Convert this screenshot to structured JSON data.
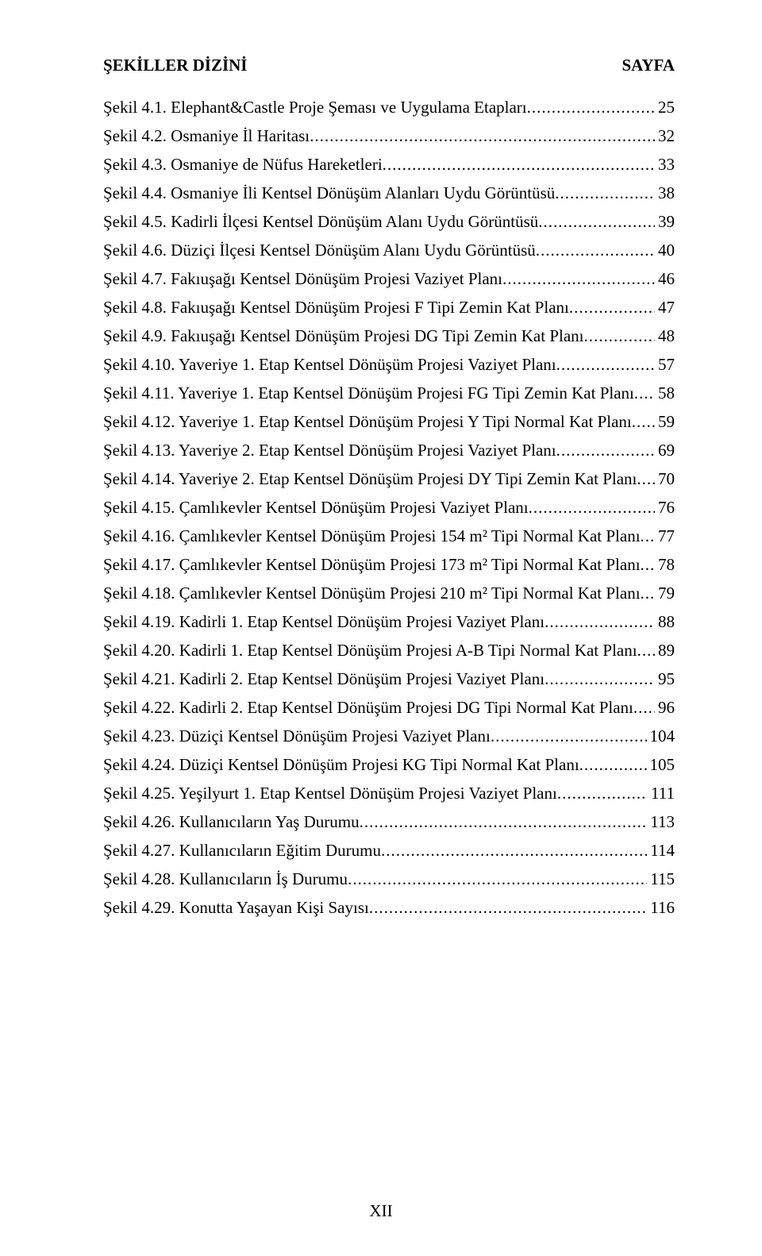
{
  "header": {
    "left": "ŞEKİLLER DİZİNİ",
    "right": "SAYFA"
  },
  "entries": [
    {
      "label": "Şekil 4.1. Elephant&Castle Proje Şeması ve Uygulama Etapları",
      "page": "25"
    },
    {
      "label": "Şekil 4.2. Osmaniye İl Haritası",
      "page": "32"
    },
    {
      "label": "Şekil 4.3. Osmaniye de Nüfus Hareketleri",
      "page": "33"
    },
    {
      "label": "Şekil 4.4. Osmaniye İli Kentsel Dönüşüm Alanları Uydu Görüntüsü",
      "page": "38"
    },
    {
      "label": "Şekil 4.5. Kadirli İlçesi Kentsel Dönüşüm Alanı Uydu Görüntüsü",
      "page": "39"
    },
    {
      "label": "Şekil 4.6. Düziçi İlçesi Kentsel Dönüşüm Alanı Uydu Görüntüsü",
      "page": "40"
    },
    {
      "label": "Şekil 4.7. Fakıuşağı Kentsel Dönüşüm Projesi Vaziyet Planı",
      "page": "46"
    },
    {
      "label": "Şekil 4.8. Fakıuşağı Kentsel Dönüşüm Projesi F Tipi Zemin Kat Planı",
      "page": "47"
    },
    {
      "label": "Şekil 4.9. Fakıuşağı Kentsel Dönüşüm Projesi DG Tipi Zemin Kat Planı",
      "page": "48"
    },
    {
      "label": "Şekil 4.10. Yaveriye 1. Etap Kentsel Dönüşüm Projesi Vaziyet Planı",
      "page": "57"
    },
    {
      "label": "Şekil 4.11. Yaveriye 1. Etap Kentsel Dönüşüm Projesi FG Tipi Zemin Kat Planı",
      "page": "58"
    },
    {
      "label": "Şekil 4.12. Yaveriye 1. Etap Kentsel Dönüşüm Projesi Y Tipi Normal Kat Planı",
      "page": "59"
    },
    {
      "label": "Şekil 4.13. Yaveriye 2. Etap Kentsel Dönüşüm Projesi Vaziyet Planı",
      "page": "69"
    },
    {
      "label": "Şekil 4.14. Yaveriye 2. Etap Kentsel Dönüşüm Projesi DY Tipi Zemin Kat Planı",
      "page": "70"
    },
    {
      "label": "Şekil 4.15. Çamlıkevler Kentsel Dönüşüm Projesi Vaziyet Planı",
      "page": "76"
    },
    {
      "label": "Şekil 4.16. Çamlıkevler Kentsel Dönüşüm Projesi 154 m² Tipi Normal Kat Planı",
      "page": "77"
    },
    {
      "label": "Şekil 4.17. Çamlıkevler Kentsel Dönüşüm Projesi 173 m² Tipi Normal Kat Planı",
      "page": "78"
    },
    {
      "label": "Şekil 4.18. Çamlıkevler Kentsel Dönüşüm Projesi 210 m² Tipi Normal Kat Planı",
      "page": "79"
    },
    {
      "label": "Şekil 4.19. Kadirli 1. Etap Kentsel Dönüşüm Projesi Vaziyet Planı",
      "page": "88"
    },
    {
      "label": "Şekil 4.20. Kadirli 1. Etap Kentsel Dönüşüm Projesi A-B Tipi Normal Kat Planı",
      "page": "89"
    },
    {
      "label": "Şekil 4.21. Kadirli 2. Etap Kentsel Dönüşüm Projesi Vaziyet Planı",
      "page": "95"
    },
    {
      "label": "Şekil 4.22. Kadirli 2. Etap Kentsel Dönüşüm Projesi DG Tipi Normal Kat Planı",
      "page": "96"
    },
    {
      "label": "Şekil 4.23. Düziçi Kentsel Dönüşüm Projesi Vaziyet Planı",
      "page": "104"
    },
    {
      "label": "Şekil 4.24. Düziçi Kentsel Dönüşüm Projesi KG Tipi Normal Kat Planı",
      "page": "105"
    },
    {
      "label": "Şekil 4.25. Yeşilyurt 1. Etap Kentsel Dönüşüm Projesi Vaziyet Planı",
      "page": "111"
    },
    {
      "label": "Şekil 4.26. Kullanıcıların Yaş Durumu",
      "page": "113"
    },
    {
      "label": "Şekil 4.27. Kullanıcıların Eğitim Durumu",
      "page": "114"
    },
    {
      "label": "Şekil 4.28. Kullanıcıların İş Durumu",
      "page": "115"
    },
    {
      "label": "Şekil 4.29. Konutta Yaşayan Kişi Sayısı",
      "page": "116"
    }
  ],
  "pageNumber": "XII"
}
